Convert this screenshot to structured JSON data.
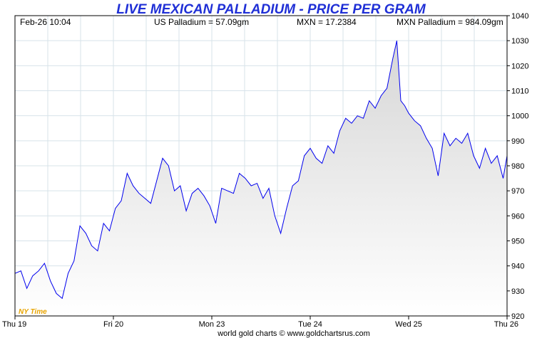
{
  "header": {
    "title": "LIVE MEXICAN PALLADIUM - PRICE PER GRAM",
    "datetime": "Feb-26  10:04",
    "us_price": "US Palladium = 57.09gm",
    "fx_rate": "MXN = 17.2384",
    "mxn_price": "MXN Palladium = 984.09gm"
  },
  "timezone_label": "NY Time",
  "credit": "world gold charts © www.goldchartsrus.com",
  "colors": {
    "title": "#1f2fd6",
    "line": "#0000ee",
    "fill_top": "#d6d6d6",
    "fill_bottom": "#ffffff",
    "grid": "#d7e3ea",
    "timezone": "#e8a400"
  },
  "chart_data": {
    "type": "area",
    "title": "LIVE MEXICAN PALLADIUM - PRICE PER GRAM",
    "xlabel": "",
    "ylabel": "",
    "ylim": [
      920,
      1040
    ],
    "y_ticks": [
      "920",
      "930",
      "940",
      "950",
      "960",
      "970",
      "980",
      "990",
      "1000",
      "1010",
      "1020",
      "1030",
      "1040"
    ],
    "x_ticks": [
      "Thu 19",
      "Fri 20",
      "Mon 23",
      "Tue 24",
      "Wed 25",
      "Thu 26"
    ],
    "grid": true,
    "series": [
      {
        "name": "",
        "x": [
          0.0,
          0.06,
          0.12,
          0.18,
          0.24,
          0.3,
          0.36,
          0.42,
          0.48,
          0.54,
          0.6,
          0.66,
          0.72,
          0.78,
          0.84,
          0.9,
          0.96,
          1.02,
          1.08,
          1.14,
          1.2,
          1.26,
          1.32,
          1.38,
          1.44,
          1.5,
          1.56,
          1.62,
          1.68,
          1.74,
          1.8,
          1.86,
          1.92,
          1.98,
          2.04,
          2.1,
          2.16,
          2.22,
          2.28,
          2.34,
          2.4,
          2.46,
          2.52,
          2.58,
          2.64,
          2.7,
          2.76,
          2.82,
          2.88,
          2.94,
          3.0,
          3.06,
          3.12,
          3.18,
          3.24,
          3.3,
          3.36,
          3.42,
          3.48,
          3.54,
          3.6,
          3.66,
          3.72,
          3.78,
          3.84,
          3.88,
          3.92,
          3.96,
          4.0,
          4.06,
          4.12,
          4.18,
          4.24,
          4.3,
          4.36,
          4.42,
          4.48,
          4.54,
          4.6,
          4.66,
          4.72,
          4.78,
          4.84,
          4.9,
          4.96,
          5.0
        ],
        "values": [
          937,
          938,
          931,
          936,
          938,
          941,
          934,
          929,
          927,
          937,
          942,
          956,
          953,
          948,
          946,
          957,
          954,
          963,
          966,
          977,
          972,
          969,
          967,
          965,
          974,
          983,
          980,
          970,
          972,
          962,
          969,
          971,
          968,
          964,
          957,
          971,
          970,
          969,
          977,
          975,
          972,
          973,
          967,
          971,
          960,
          953,
          963,
          972,
          974,
          984,
          987,
          983,
          981,
          988,
          985,
          994,
          999,
          997,
          1000,
          999,
          1006,
          1003,
          1008,
          1011,
          1023,
          1030,
          1006,
          1004,
          1001,
          998,
          996,
          991,
          987,
          976,
          993,
          988,
          991,
          989,
          993,
          984,
          979,
          987,
          981,
          984,
          975,
          984
        ]
      }
    ]
  }
}
